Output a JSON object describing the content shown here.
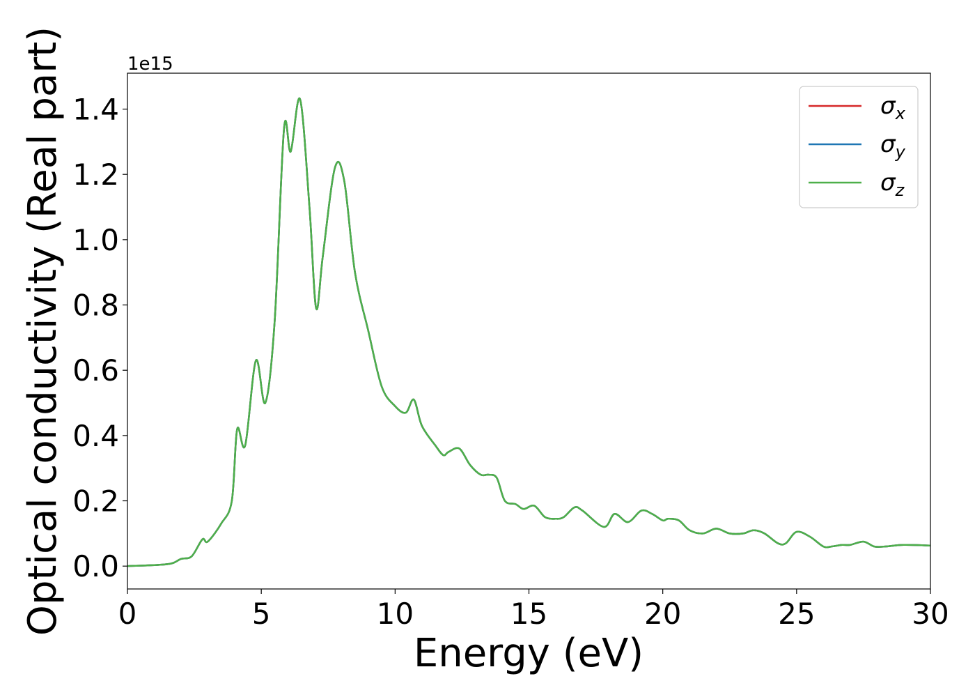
{
  "chart_data": {
    "type": "line",
    "title": "",
    "xlabel": "Energy (eV)",
    "ylabel": "Optical conductivity (Real part)",
    "y_offset_label": "1e15",
    "xlim": [
      0,
      30
    ],
    "ylim": [
      -0.07,
      1.51
    ],
    "x_ticks": [
      0,
      5,
      10,
      15,
      20,
      25,
      30
    ],
    "x_tick_labels": [
      "0",
      "5",
      "10",
      "15",
      "20",
      "25",
      "30"
    ],
    "y_ticks": [
      0.0,
      0.2,
      0.4,
      0.6,
      0.8,
      1.0,
      1.2,
      1.4
    ],
    "y_tick_labels": [
      "0.0",
      "0.2",
      "0.4",
      "0.6",
      "0.8",
      "1.0",
      "1.2",
      "1.4"
    ],
    "grid": false,
    "legend_position": "top-right",
    "series": [
      {
        "name": "σx",
        "legend_main": "σ",
        "legend_sub": "x",
        "color": "#d62728",
        "x": [
          0,
          1.5,
          2.0,
          2.4,
          2.8,
          3.0,
          3.5,
          3.9,
          4.1,
          4.4,
          4.8,
          5.15,
          5.5,
          5.85,
          6.1,
          6.45,
          6.8,
          7.05,
          7.3,
          7.75,
          8.1,
          8.5,
          9.0,
          9.5,
          10.0,
          10.4,
          10.7,
          11.0,
          11.5,
          11.8,
          12.0,
          12.4,
          12.8,
          13.2,
          13.5,
          13.8,
          14.1,
          14.5,
          14.8,
          15.2,
          15.6,
          16.0,
          16.3,
          16.7,
          17.0,
          17.8,
          18.2,
          18.7,
          19.2,
          19.6,
          20.0,
          20.2,
          20.6,
          21.0,
          21.5,
          22.0,
          22.5,
          23.0,
          23.4,
          23.8,
          24.3,
          24.6,
          25.0,
          25.5,
          26.0,
          26.3,
          26.7,
          27.0,
          27.5,
          27.9,
          28.3,
          29.0,
          30.0
        ],
        "y": [
          0.0,
          0.006,
          0.022,
          0.03,
          0.082,
          0.075,
          0.13,
          0.2,
          0.42,
          0.37,
          0.63,
          0.5,
          0.75,
          1.34,
          1.27,
          1.43,
          1.1,
          0.79,
          0.95,
          1.22,
          1.18,
          0.9,
          0.72,
          0.55,
          0.49,
          0.47,
          0.51,
          0.43,
          0.37,
          0.34,
          0.35,
          0.36,
          0.31,
          0.28,
          0.28,
          0.27,
          0.2,
          0.19,
          0.175,
          0.185,
          0.15,
          0.145,
          0.15,
          0.18,
          0.17,
          0.12,
          0.16,
          0.135,
          0.17,
          0.16,
          0.14,
          0.145,
          0.14,
          0.11,
          0.1,
          0.115,
          0.1,
          0.1,
          0.11,
          0.1,
          0.07,
          0.07,
          0.105,
          0.09,
          0.06,
          0.06,
          0.065,
          0.065,
          0.075,
          0.06,
          0.06,
          0.065,
          0.063
        ]
      },
      {
        "name": "σy",
        "legend_main": "σ",
        "legend_sub": "y",
        "color": "#1f77b4",
        "x": [
          0,
          1.5,
          2.0,
          2.4,
          2.8,
          3.0,
          3.5,
          3.9,
          4.1,
          4.4,
          4.8,
          5.15,
          5.5,
          5.85,
          6.1,
          6.45,
          6.8,
          7.05,
          7.3,
          7.75,
          8.1,
          8.5,
          9.0,
          9.5,
          10.0,
          10.4,
          10.7,
          11.0,
          11.5,
          11.8,
          12.0,
          12.4,
          12.8,
          13.2,
          13.5,
          13.8,
          14.1,
          14.5,
          14.8,
          15.2,
          15.6,
          16.0,
          16.3,
          16.7,
          17.0,
          17.8,
          18.2,
          18.7,
          19.2,
          19.6,
          20.0,
          20.2,
          20.6,
          21.0,
          21.5,
          22.0,
          22.5,
          23.0,
          23.4,
          23.8,
          24.3,
          24.6,
          25.0,
          25.5,
          26.0,
          26.3,
          26.7,
          27.0,
          27.5,
          27.9,
          28.3,
          29.0,
          30.0
        ],
        "y": [
          0.0,
          0.006,
          0.022,
          0.03,
          0.082,
          0.075,
          0.13,
          0.2,
          0.42,
          0.37,
          0.63,
          0.5,
          0.75,
          1.34,
          1.27,
          1.43,
          1.1,
          0.79,
          0.95,
          1.22,
          1.18,
          0.9,
          0.72,
          0.55,
          0.49,
          0.47,
          0.51,
          0.43,
          0.37,
          0.34,
          0.35,
          0.36,
          0.31,
          0.28,
          0.28,
          0.27,
          0.2,
          0.19,
          0.175,
          0.185,
          0.15,
          0.145,
          0.15,
          0.18,
          0.17,
          0.12,
          0.16,
          0.135,
          0.17,
          0.16,
          0.14,
          0.145,
          0.14,
          0.11,
          0.1,
          0.115,
          0.1,
          0.1,
          0.11,
          0.1,
          0.07,
          0.07,
          0.105,
          0.09,
          0.06,
          0.06,
          0.065,
          0.065,
          0.075,
          0.06,
          0.06,
          0.065,
          0.063
        ]
      },
      {
        "name": "σz",
        "legend_main": "σ",
        "legend_sub": "z",
        "color": "#4daf4a",
        "x": [
          0,
          1.5,
          2.0,
          2.4,
          2.8,
          3.0,
          3.5,
          3.9,
          4.1,
          4.4,
          4.8,
          5.15,
          5.5,
          5.85,
          6.1,
          6.45,
          6.8,
          7.05,
          7.3,
          7.75,
          8.1,
          8.5,
          9.0,
          9.5,
          10.0,
          10.4,
          10.7,
          11.0,
          11.5,
          11.8,
          12.0,
          12.4,
          12.8,
          13.2,
          13.5,
          13.8,
          14.1,
          14.5,
          14.8,
          15.2,
          15.6,
          16.0,
          16.3,
          16.7,
          17.0,
          17.8,
          18.2,
          18.7,
          19.2,
          19.6,
          20.0,
          20.2,
          20.6,
          21.0,
          21.5,
          22.0,
          22.5,
          23.0,
          23.4,
          23.8,
          24.3,
          24.6,
          25.0,
          25.5,
          26.0,
          26.3,
          26.7,
          27.0,
          27.5,
          27.9,
          28.3,
          29.0,
          30.0
        ],
        "y": [
          0.0,
          0.006,
          0.022,
          0.03,
          0.082,
          0.075,
          0.13,
          0.2,
          0.42,
          0.37,
          0.63,
          0.5,
          0.75,
          1.34,
          1.27,
          1.43,
          1.1,
          0.79,
          0.95,
          1.22,
          1.18,
          0.9,
          0.72,
          0.55,
          0.49,
          0.47,
          0.51,
          0.43,
          0.37,
          0.34,
          0.35,
          0.36,
          0.31,
          0.28,
          0.28,
          0.27,
          0.2,
          0.19,
          0.175,
          0.185,
          0.15,
          0.145,
          0.15,
          0.18,
          0.17,
          0.12,
          0.16,
          0.135,
          0.17,
          0.16,
          0.14,
          0.145,
          0.14,
          0.11,
          0.1,
          0.115,
          0.1,
          0.1,
          0.11,
          0.1,
          0.07,
          0.07,
          0.105,
          0.09,
          0.06,
          0.06,
          0.065,
          0.065,
          0.075,
          0.06,
          0.06,
          0.065,
          0.063
        ]
      }
    ]
  }
}
